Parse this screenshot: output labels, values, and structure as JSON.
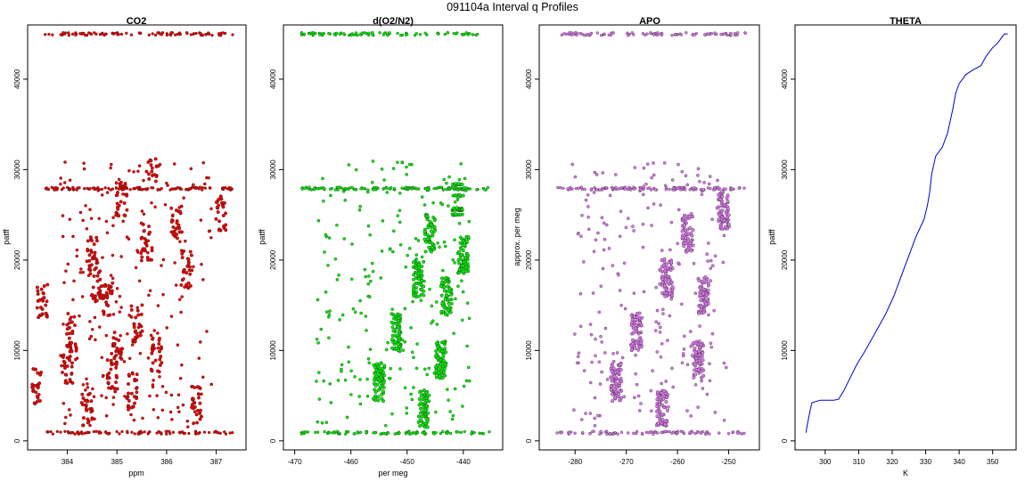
{
  "figure_title": "091104a   Interval q Profiles",
  "colors": {
    "co2": "#ee0000",
    "o2n2": "#00ee00",
    "apo": "#dd77ee",
    "theta": "#0000cc",
    "outline": "#000000"
  },
  "chart_data": [
    {
      "type": "scatter",
      "title": "CO2",
      "xlabel": "ppm",
      "ylabel": "patff",
      "xlim": [
        383.2,
        387.6
      ],
      "ylim": [
        -1000,
        46000
      ],
      "xticks": [
        384,
        385,
        386,
        387
      ],
      "yticks": [
        0,
        10000,
        20000,
        30000,
        40000
      ],
      "cluster_levels": [
        45000,
        27900,
        900
      ],
      "columns": [
        {
          "y": 6000,
          "x": 383.4
        },
        {
          "y": 15500,
          "x": 383.5
        },
        {
          "y": 8500,
          "x": 384.0
        },
        {
          "y": 12000,
          "x": 384.1
        },
        {
          "y": 3500,
          "x": 384.4
        },
        {
          "y": 17500,
          "x": 384.6
        },
        {
          "y": 20500,
          "x": 384.5
        },
        {
          "y": 7500,
          "x": 384.9
        },
        {
          "y": 10000,
          "x": 385.0
        },
        {
          "y": 16000,
          "x": 384.8
        },
        {
          "y": 26500,
          "x": 385.1
        },
        {
          "y": 5500,
          "x": 385.3
        },
        {
          "y": 13000,
          "x": 385.4
        },
        {
          "y": 22000,
          "x": 385.6
        },
        {
          "y": 30500,
          "x": 385.7
        },
        {
          "y": 9500,
          "x": 385.8
        },
        {
          "y": 24500,
          "x": 386.2
        },
        {
          "y": 19000,
          "x": 386.4
        },
        {
          "y": 4000,
          "x": 386.6
        },
        {
          "y": 25000,
          "x": 387.1
        }
      ]
    },
    {
      "type": "scatter",
      "title": "d(O2/N2)",
      "xlabel": "per meg",
      "ylabel": "patff",
      "xlim": [
        -472,
        -433
      ],
      "ylim": [
        -1000,
        46000
      ],
      "xticks": [
        -470,
        -460,
        -450,
        -440
      ],
      "yticks": [
        0,
        10000,
        20000,
        30000,
        40000
      ],
      "cluster_levels": [
        45000,
        27900,
        900
      ],
      "columns": [
        {
          "y": 6500,
          "x": -455
        },
        {
          "y": 12000,
          "x": -452
        },
        {
          "y": 18000,
          "x": -448
        },
        {
          "y": 23000,
          "x": -446
        },
        {
          "y": 16000,
          "x": -443
        },
        {
          "y": 9000,
          "x": -444
        },
        {
          "y": 3500,
          "x": -447
        },
        {
          "y": 27000,
          "x": -441
        },
        {
          "y": 20500,
          "x": -440
        }
      ]
    },
    {
      "type": "scatter",
      "title": "APO",
      "xlabel": "",
      "ylabel": "approx. per meg",
      "xlim": [
        -287,
        -244
      ],
      "ylim": [
        -1000,
        46000
      ],
      "xticks": [
        -280,
        -270,
        -260,
        -250
      ],
      "yticks": [
        0,
        10000,
        20000,
        30000,
        40000
      ],
      "cluster_levels": [
        45000,
        27900,
        900
      ],
      "columns": [
        {
          "y": 6500,
          "x": -272
        },
        {
          "y": 12000,
          "x": -268
        },
        {
          "y": 18000,
          "x": -262
        },
        {
          "y": 23000,
          "x": -258
        },
        {
          "y": 16000,
          "x": -255
        },
        {
          "y": 9000,
          "x": -256
        },
        {
          "y": 3500,
          "x": -263
        },
        {
          "y": 25500,
          "x": -251
        }
      ]
    },
    {
      "type": "line",
      "title": "THETA",
      "xlabel": "K",
      "ylabel": "patff",
      "xlim": [
        291,
        357
      ],
      "ylim": [
        -1000,
        46000
      ],
      "xticks": [
        300,
        310,
        320,
        330,
        340,
        350
      ],
      "yticks": [
        0,
        10000,
        20000,
        30000,
        40000
      ],
      "x": [
        294.3,
        294.5,
        295.3,
        296.0,
        298.5,
        301.0,
        302.5,
        304.0,
        305.5,
        307.5,
        309.5,
        312.0,
        315.0,
        318.0,
        320.5,
        323.0,
        325.0,
        327.0,
        329.5,
        330.5,
        331.2,
        331.8,
        333.0,
        335.0,
        336.5,
        338.0,
        339.0,
        340.0,
        342.0,
        344.0,
        346.5,
        348.0,
        350.0,
        351.5,
        352.5,
        353.5,
        354.5
      ],
      "y": [
        900,
        1500,
        3000,
        4200,
        4500,
        4500,
        4500,
        4600,
        5500,
        7000,
        8500,
        10000,
        12000,
        14000,
        16000,
        18500,
        20500,
        22500,
        24500,
        26000,
        27500,
        29500,
        31500,
        32500,
        34000,
        36500,
        38500,
        39500,
        40500,
        41000,
        41500,
        42500,
        43500,
        44000,
        44500,
        45000,
        45000
      ]
    }
  ]
}
